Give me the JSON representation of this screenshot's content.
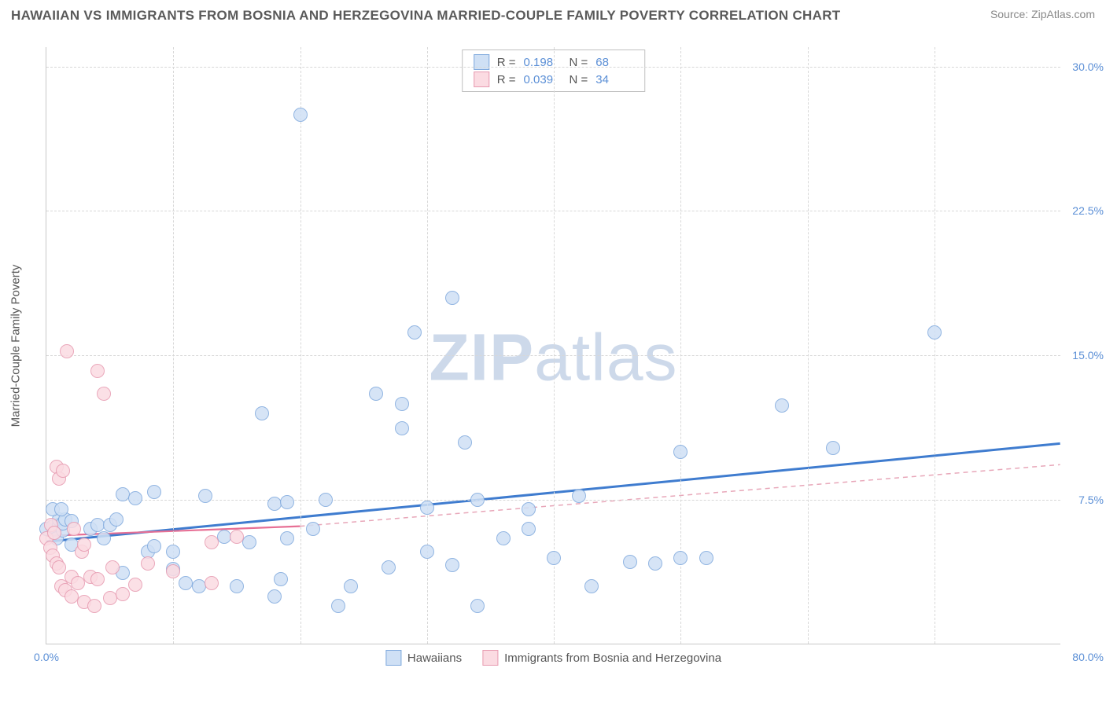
{
  "title": "HAWAIIAN VS IMMIGRANTS FROM BOSNIA AND HERZEGOVINA MARRIED-COUPLE FAMILY POVERTY CORRELATION CHART",
  "source": "Source: ZipAtlas.com",
  "y_axis_label": "Married-Couple Family Poverty",
  "watermark": {
    "bold": "ZIP",
    "rest": "atlas",
    "color": "#cdd9ea"
  },
  "chart": {
    "type": "scatter",
    "background_color": "#ffffff",
    "grid_color": "#d8d8d8",
    "axis_color": "#c8c8c8",
    "text_color": "#555555",
    "value_color": "#5b8fd6",
    "xlim": [
      0,
      80
    ],
    "ylim": [
      0,
      31
    ],
    "yticks": [
      {
        "v": 7.5,
        "label": "7.5%"
      },
      {
        "v": 15.0,
        "label": "15.0%"
      },
      {
        "v": 22.5,
        "label": "22.5%"
      },
      {
        "v": 30.0,
        "label": "30.0%"
      }
    ],
    "xticks_lines": [
      10,
      20,
      30,
      40,
      50,
      60,
      70
    ],
    "x_left_label": "0.0%",
    "x_right_label": "80.0%",
    "marker_radius": 9,
    "marker_stroke_width": 1.3,
    "series": [
      {
        "key": "hawaiians",
        "label": "Hawaiians",
        "fill": "#cfe0f5",
        "stroke": "#7fa9dd",
        "r_value": "0.198",
        "n_value": "68",
        "trend": {
          "x1": 0,
          "y1": 5.3,
          "x2": 80,
          "y2": 10.4,
          "color": "#3f7ccf",
          "width": 3,
          "dash": ""
        },
        "trend_ext": null,
        "points": [
          [
            0,
            6.0
          ],
          [
            0.5,
            6.1
          ],
          [
            0.8,
            5.5
          ],
          [
            1,
            6.2
          ],
          [
            1,
            6.5
          ],
          [
            1.3,
            5.9
          ],
          [
            1.3,
            6.3
          ],
          [
            1.5,
            6.5
          ],
          [
            2,
            6.4
          ],
          [
            2,
            5.2
          ],
          [
            0.5,
            7.0
          ],
          [
            1.2,
            7.0
          ],
          [
            3.5,
            6.0
          ],
          [
            4,
            6.2
          ],
          [
            4.5,
            5.5
          ],
          [
            5,
            6.2
          ],
          [
            5.5,
            6.5
          ],
          [
            6,
            3.7
          ],
          [
            6,
            7.8
          ],
          [
            7,
            7.6
          ],
          [
            8,
            4.8
          ],
          [
            8.5,
            7.9
          ],
          [
            8.5,
            5.1
          ],
          [
            10,
            3.9
          ],
          [
            10,
            4.8
          ],
          [
            11,
            3.2
          ],
          [
            12,
            3.0
          ],
          [
            12.5,
            7.7
          ],
          [
            14,
            5.6
          ],
          [
            15,
            3.0
          ],
          [
            16,
            5.3
          ],
          [
            17,
            12.0
          ],
          [
            18,
            2.5
          ],
          [
            18,
            7.3
          ],
          [
            18.5,
            3.4
          ],
          [
            19,
            7.4
          ],
          [
            19,
            5.5
          ],
          [
            20,
            27.5
          ],
          [
            21,
            6.0
          ],
          [
            22,
            7.5
          ],
          [
            23,
            2.0
          ],
          [
            24,
            3.0
          ],
          [
            26,
            13.0
          ],
          [
            27,
            4.0
          ],
          [
            28,
            11.2
          ],
          [
            28,
            12.5
          ],
          [
            29,
            16.2
          ],
          [
            30,
            7.1
          ],
          [
            30,
            4.8
          ],
          [
            32,
            18.0
          ],
          [
            32,
            4.1
          ],
          [
            33,
            10.5
          ],
          [
            34,
            2.0
          ],
          [
            36,
            5.5
          ],
          [
            38,
            6.0
          ],
          [
            38,
            7.0
          ],
          [
            42,
            7.7
          ],
          [
            43,
            3.0
          ],
          [
            46,
            4.3
          ],
          [
            48,
            4.2
          ],
          [
            50,
            10.0
          ],
          [
            50,
            4.5
          ],
          [
            52,
            4.5
          ],
          [
            58,
            12.4
          ],
          [
            62,
            10.2
          ],
          [
            70,
            16.2
          ],
          [
            34,
            7.5
          ],
          [
            40,
            4.5
          ]
        ]
      },
      {
        "key": "bosnia",
        "label": "Immigrants from Bosnia and Herzegovina",
        "fill": "#fbdbe2",
        "stroke": "#e79ab0",
        "r_value": "0.039",
        "n_value": "34",
        "trend": {
          "x1": 0,
          "y1": 5.6,
          "x2": 20,
          "y2": 6.1,
          "color": "#e77095",
          "width": 2.2,
          "dash": ""
        },
        "trend_ext": {
          "x1": 20,
          "y1": 6.1,
          "x2": 80,
          "y2": 9.3,
          "color": "#e8a7b9",
          "width": 1.5,
          "dash": "6 5"
        },
        "points": [
          [
            0,
            5.5
          ],
          [
            0.3,
            5.0
          ],
          [
            0.4,
            6.2
          ],
          [
            0.5,
            4.6
          ],
          [
            0.6,
            5.8
          ],
          [
            0.8,
            4.2
          ],
          [
            0.8,
            9.2
          ],
          [
            1,
            8.6
          ],
          [
            1,
            4.0
          ],
          [
            1.2,
            3.0
          ],
          [
            1.3,
            9.0
          ],
          [
            1.5,
            2.8
          ],
          [
            1.6,
            15.2
          ],
          [
            2,
            3.5
          ],
          [
            2,
            2.5
          ],
          [
            2.2,
            6.0
          ],
          [
            2.5,
            3.2
          ],
          [
            2.8,
            4.8
          ],
          [
            3,
            2.2
          ],
          [
            3,
            5.2
          ],
          [
            3.5,
            3.5
          ],
          [
            3.8,
            2.0
          ],
          [
            4,
            3.4
          ],
          [
            4,
            14.2
          ],
          [
            4.5,
            13.0
          ],
          [
            5,
            2.4
          ],
          [
            5.2,
            4.0
          ],
          [
            6,
            2.6
          ],
          [
            7,
            3.1
          ],
          [
            8,
            4.2
          ],
          [
            10,
            3.8
          ],
          [
            13,
            3.2
          ],
          [
            13,
            5.3
          ],
          [
            15,
            5.6
          ]
        ]
      }
    ]
  },
  "legend_top": {
    "r_label": "R =",
    "n_label": "N ="
  }
}
